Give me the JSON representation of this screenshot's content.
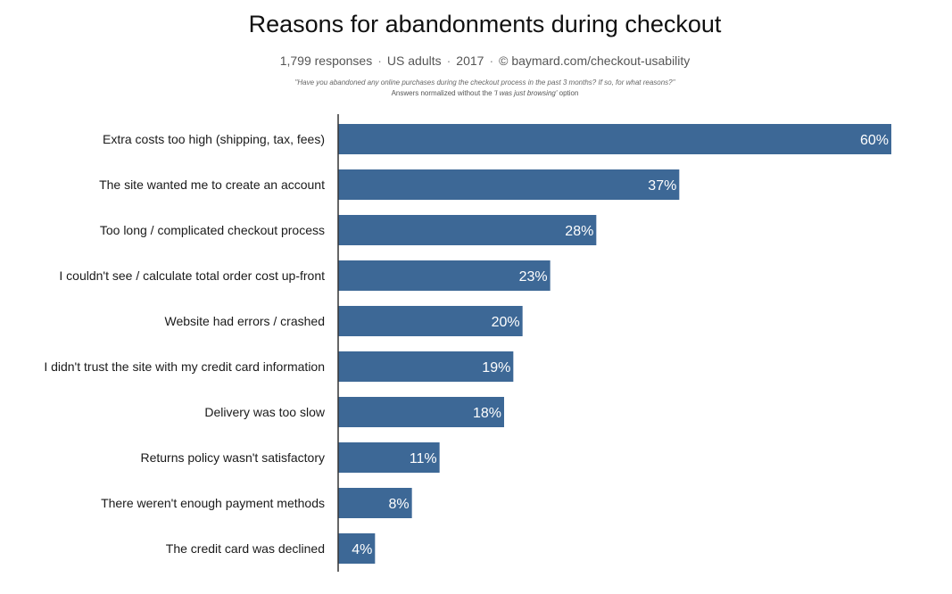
{
  "header": {
    "title": "Reasons for abandonments during checkout",
    "subtitle_parts": [
      "1,799 responses",
      "US adults",
      "2017",
      "© baymard.com/checkout-usability"
    ],
    "question": "\"Have you abandoned any online purchases during the checkout process in the past 3 months? If so, for what reasons?\"",
    "note_prefix": "Answers normalized without the ",
    "note_italic": "'I was just browsing'",
    "note_suffix": " option"
  },
  "colors": {
    "bar": "#3d6896",
    "bar_label": "#ffffff",
    "axis": "#333333",
    "text": "#1a1a1a"
  },
  "chart_data": {
    "type": "bar",
    "orientation": "horizontal",
    "title": "Reasons for abandonments during checkout",
    "categories": [
      "Extra costs too high (shipping, tax, fees)",
      "The site wanted me to create an account",
      "Too long / complicated checkout process",
      "I couldn't see / calculate total order cost up-front",
      "Website had errors / crashed",
      "I didn't trust the site with my credit card information",
      "Delivery was too slow",
      "Returns policy wasn't satisfactory",
      "There weren't enough payment methods",
      "The credit card was declined"
    ],
    "values": [
      60,
      37,
      28,
      23,
      20,
      19,
      18,
      11,
      8,
      4
    ],
    "value_labels": [
      "60%",
      "37%",
      "28%",
      "23%",
      "20%",
      "19%",
      "18%",
      "11%",
      "8%",
      "4%"
    ],
    "unit": "%",
    "xlim": [
      0,
      60
    ],
    "grid": false,
    "legend": "none"
  }
}
